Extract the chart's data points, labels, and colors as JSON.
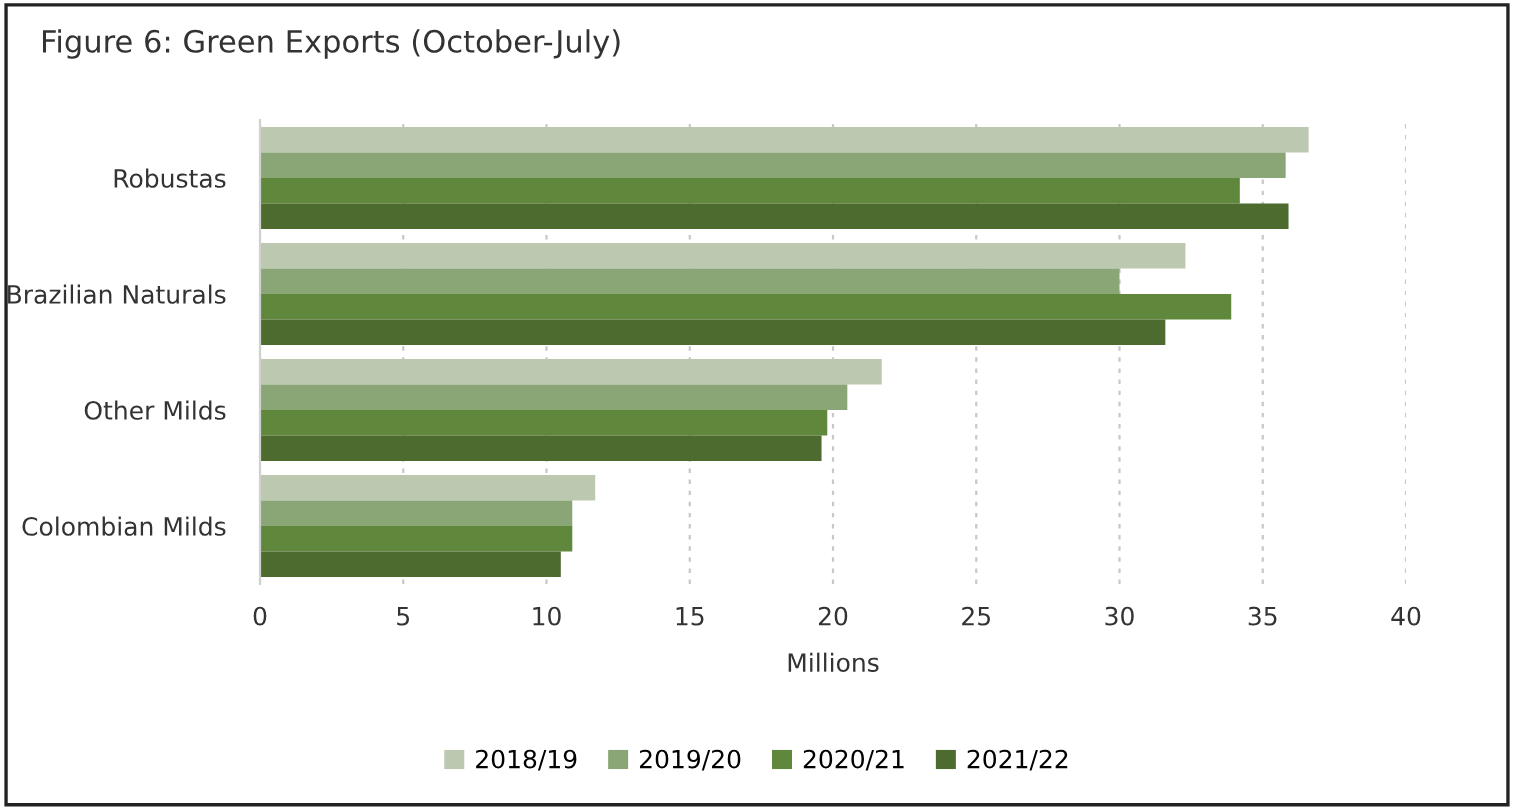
{
  "chart_data": {
    "type": "bar",
    "orientation": "horizontal",
    "title": "Figure 6: Green Exports (October-July)",
    "xlabel": "Millions",
    "categories": [
      "Robustas",
      "Brazilian Naturals",
      "Other Milds",
      "Colombian Milds"
    ],
    "series": [
      {
        "name": "2018/19",
        "color": "#bcc8b0",
        "values": [
          36.6,
          32.3,
          21.7,
          11.7
        ]
      },
      {
        "name": "2019/20",
        "color": "#8aa677",
        "values": [
          35.8,
          30.0,
          20.5,
          10.9
        ]
      },
      {
        "name": "2020/21",
        "color": "#5f883d",
        "values": [
          34.2,
          33.9,
          19.8,
          10.9
        ]
      },
      {
        "name": "2021/22",
        "color": "#4e6b2f",
        "values": [
          35.9,
          31.6,
          19.6,
          10.5
        ]
      }
    ],
    "xlim": [
      0,
      40
    ],
    "xticks": [
      0,
      5,
      10,
      15,
      20,
      25,
      30,
      35,
      40
    ],
    "grid": "x",
    "legend": "bottom"
  }
}
